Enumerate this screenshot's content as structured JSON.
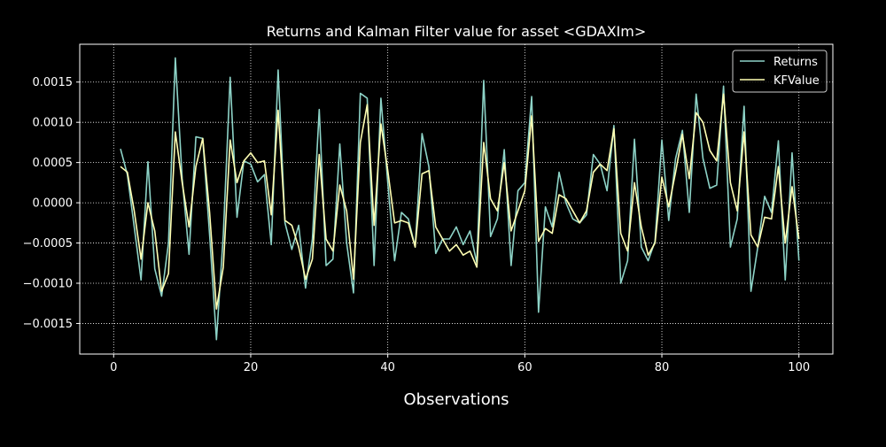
{
  "chart_data": {
    "type": "line",
    "title": "Returns and Kalman Filter value for asset <GDAXIm>",
    "xlabel": "Observations",
    "ylabel": "",
    "xlim": [
      -4.95,
      104.95
    ],
    "ylim": [
      -0.00188,
      0.00197
    ],
    "xticks": [
      0,
      20,
      40,
      60,
      80,
      100
    ],
    "xtick_labels": [
      "0",
      "20",
      "40",
      "60",
      "80",
      "100"
    ],
    "yticks": [
      -0.0015,
      -0.001,
      -0.0005,
      0.0,
      0.0005,
      0.001,
      0.0015
    ],
    "ytick_labels": [
      "−0.0015",
      "−0.0010",
      "−0.0005",
      "0.0000",
      "0.0005",
      "0.0010",
      "0.0015"
    ],
    "grid": true,
    "grid_style": "dotted",
    "legend_position": "top-right",
    "x": [
      1,
      2,
      3,
      4,
      5,
      6,
      7,
      8,
      9,
      10,
      11,
      12,
      13,
      14,
      15,
      16,
      17,
      18,
      19,
      20,
      21,
      22,
      23,
      24,
      25,
      26,
      27,
      28,
      29,
      30,
      31,
      32,
      33,
      34,
      35,
      36,
      37,
      38,
      39,
      40,
      41,
      42,
      43,
      44,
      45,
      46,
      47,
      48,
      49,
      50,
      51,
      52,
      53,
      54,
      55,
      56,
      57,
      58,
      59,
      60,
      61,
      62,
      63,
      64,
      65,
      66,
      67,
      68,
      69,
      70,
      71,
      72,
      73,
      74,
      75,
      76,
      77,
      78,
      79,
      80,
      81,
      82,
      83,
      84,
      85,
      86,
      87,
      88,
      89,
      90,
      91,
      92,
      93,
      94,
      95,
      96,
      97,
      98,
      99,
      100
    ],
    "series": [
      {
        "name": "Returns",
        "color": "#8dd3c7",
        "values": [
          0.00067,
          0.00035,
          -0.0003,
          -0.00096,
          0.00051,
          -0.00082,
          -0.00116,
          -0.0005,
          0.0018,
          0.0003,
          -0.00064,
          0.00082,
          0.0008,
          -0.0004,
          -0.0017,
          -0.0004,
          0.00156,
          -0.00018,
          0.00052,
          0.00048,
          0.00026,
          0.00035,
          -0.00052,
          0.00165,
          -0.00025,
          -0.00058,
          -0.00028,
          -0.00106,
          -0.00045,
          0.00116,
          -0.00078,
          -0.0007,
          0.00073,
          -0.0005,
          -0.00112,
          0.00136,
          0.0013,
          -0.00078,
          0.0013,
          0.00025,
          -0.00072,
          -0.00012,
          -0.0002,
          -0.00055,
          0.00086,
          0.00045,
          -0.00063,
          -0.00045,
          -0.00045,
          -0.0003,
          -0.00052,
          -0.00035,
          -0.00075,
          0.00152,
          -0.00042,
          -0.0002,
          0.00066,
          -0.00078,
          0.00015,
          0.00025,
          0.00132,
          -0.00136,
          -5e-05,
          -0.0003,
          0.00038,
          0.0,
          -0.0002,
          -0.00025,
          -0.00015,
          0.0006,
          0.00048,
          0.00015,
          0.00096,
          -0.001,
          -0.00072,
          0.00079,
          -0.00055,
          -0.00072,
          -0.00048,
          0.00078,
          -0.00022,
          0.00055,
          0.0009,
          -0.00012,
          0.00135,
          0.00055,
          0.00018,
          0.00022,
          0.00145,
          -0.00055,
          -0.0002,
          0.0012,
          -0.0011,
          -0.00055,
          8e-05,
          -0.00012,
          0.00077,
          -0.00096,
          0.00062,
          -0.00072
        ]
      },
      {
        "name": "KFValue",
        "color": "#ffffb3",
        "values": [
          0.00045,
          0.00038,
          -0.0001,
          -0.0007,
          0.0,
          -0.00035,
          -0.0011,
          -0.00088,
          0.00088,
          0.00025,
          -0.0003,
          0.00045,
          0.0008,
          -0.00012,
          -0.00132,
          -0.0008,
          0.00078,
          0.00025,
          0.00052,
          0.00062,
          0.0005,
          0.00052,
          -0.00015,
          0.00115,
          -0.00022,
          -0.00028,
          -0.00055,
          -0.00095,
          -0.0007,
          0.0006,
          -0.00045,
          -0.0006,
          0.00022,
          -0.0001,
          -0.00095,
          0.00075,
          0.00122,
          -0.00028,
          0.00098,
          0.0004,
          -0.00025,
          -0.00022,
          -0.00025,
          -0.00055,
          0.00036,
          0.0004,
          -0.0003,
          -0.00045,
          -0.0006,
          -0.00052,
          -0.00065,
          -0.0006,
          -0.0008,
          0.00075,
          5e-05,
          -0.0001,
          0.0005,
          -0.00035,
          -0.0001,
          0.00015,
          0.00108,
          -0.00048,
          -0.00032,
          -0.00038,
          0.0001,
          5e-05,
          -0.0001,
          -0.00025,
          -0.0001,
          0.00038,
          0.00048,
          0.0004,
          0.00092,
          -0.00038,
          -0.0006,
          0.00025,
          -0.0003,
          -0.00065,
          -0.0005,
          0.00032,
          -5e-05,
          0.00038,
          0.00085,
          0.0003,
          0.00112,
          0.001,
          0.00065,
          0.00052,
          0.00135,
          0.00025,
          -0.0001,
          0.00088,
          -0.0004,
          -0.00055,
          -0.00018,
          -0.0002,
          0.00045,
          -0.0005,
          0.0002,
          -0.00045
        ]
      }
    ]
  }
}
